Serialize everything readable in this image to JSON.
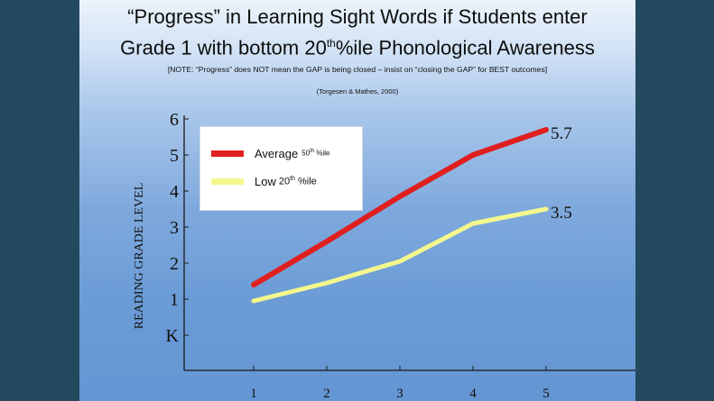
{
  "title": {
    "line1": "“Progress” in Learning Sight Words if Students enter",
    "line2_pre": "Grade 1 with bottom 20",
    "line2_sup": "th",
    "line2_post": "%ile Phonological Awareness"
  },
  "note": "[NOTE: “Progress” does NOT mean the GAP is being closed – insist on “closing the GAP” for BEST outcomes]",
  "citation": "(Torgesen & Mathes, 2000)",
  "colors": {
    "background": "#23495f",
    "average_line": "#e01f1f",
    "low_line": "#f4f78c"
  },
  "chart_data": {
    "type": "line",
    "title": "",
    "xlabel": "",
    "ylabel": "READING GRADE LEVEL",
    "x": [
      1,
      2,
      3,
      4,
      5
    ],
    "xticks": [
      "1",
      "2",
      "3",
      "4",
      "5"
    ],
    "yticks": [
      "K",
      "1",
      "2",
      "3",
      "4",
      "5",
      "6"
    ],
    "ylim": [
      0,
      6
    ],
    "xlim": [
      1,
      5
    ],
    "grid": false,
    "legend_position": "top-left",
    "series": [
      {
        "name": "Average 50th %ile",
        "legend_main": "Average",
        "legend_pct": "50",
        "legend_sup": "th",
        "legend_tail": "%ile",
        "color": "#e01f1f",
        "values": [
          1.4,
          2.6,
          3.85,
          5.0,
          5.7
        ],
        "end_label": "5.7"
      },
      {
        "name": "Low 20th %ile",
        "legend_main": "Low",
        "legend_pct": "20",
        "legend_sup": "th",
        "legend_tail": "%ile",
        "color": "#f4f78c",
        "values": [
          0.95,
          1.45,
          2.05,
          3.1,
          3.5
        ],
        "end_label": "3.5"
      }
    ]
  }
}
